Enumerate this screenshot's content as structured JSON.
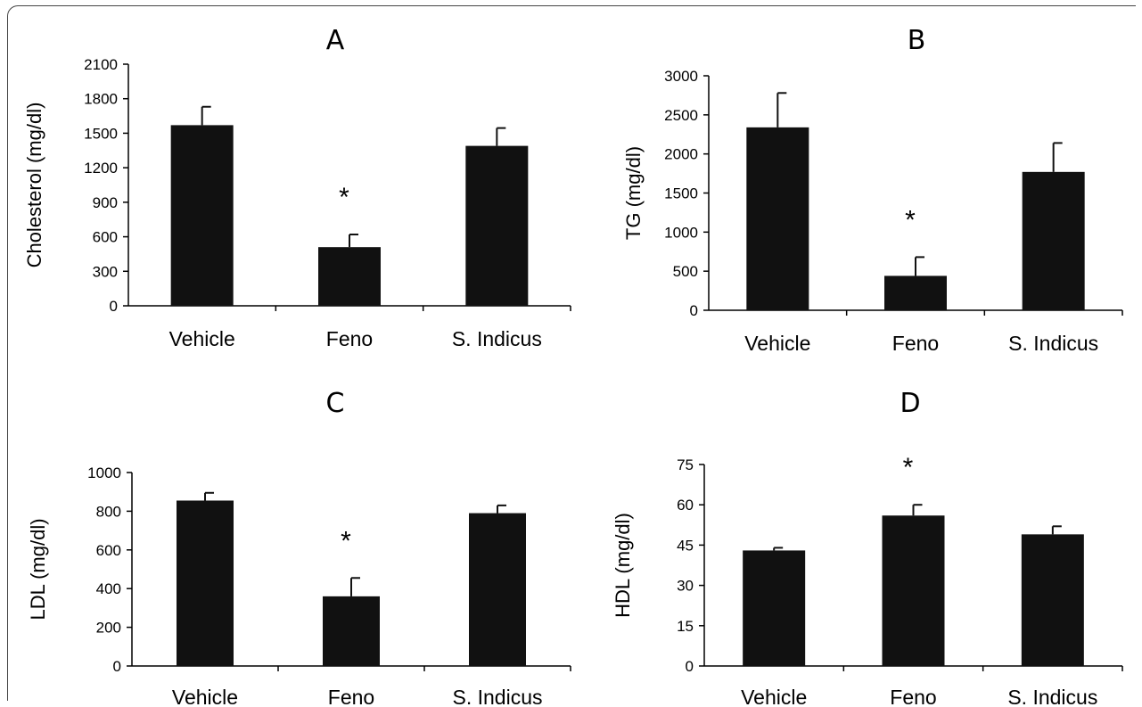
{
  "chart_data": [
    {
      "type": "bar",
      "title": "A",
      "ylabel": "Cholesterol (mg/dl)",
      "categories": [
        "Vehicle",
        "Feno",
        "S. Indicus"
      ],
      "values": [
        1570,
        510,
        1390
      ],
      "errors": [
        160,
        110,
        155
      ],
      "significance": [
        "",
        "*",
        ""
      ],
      "ylim": [
        0,
        2100
      ],
      "yticks": [
        "0",
        "300",
        "600",
        "900",
        "1200",
        "1500",
        "1800",
        "2100"
      ]
    },
    {
      "type": "bar",
      "title": "B",
      "ylabel": "TG (mg/dl)",
      "categories": [
        "Vehicle",
        "Feno",
        "S. Indicus"
      ],
      "values": [
        2340,
        440,
        1770
      ],
      "errors": [
        440,
        240,
        370
      ],
      "significance": [
        "",
        "*",
        ""
      ],
      "ylim": [
        0,
        3000
      ],
      "yticks": [
        "0",
        "500",
        "1000",
        "1500",
        "2000",
        "2500",
        "3000"
      ]
    },
    {
      "type": "bar",
      "title": "C",
      "ylabel": "LDL (mg/dl)",
      "categories": [
        "Vehicle",
        "Feno",
        "S. Indicus"
      ],
      "values": [
        855,
        360,
        790
      ],
      "errors": [
        40,
        95,
        40
      ],
      "significance": [
        "",
        "*",
        ""
      ],
      "ylim": [
        0,
        1000
      ],
      "yticks": [
        "0",
        "200",
        "400",
        "600",
        "800",
        "1000"
      ]
    },
    {
      "type": "bar",
      "title": "D",
      "ylabel": "HDL (mg/dl)",
      "categories": [
        "Vehicle",
        "Feno",
        "S. Indicus"
      ],
      "values": [
        43,
        56,
        49
      ],
      "errors": [
        1,
        4,
        3
      ],
      "significance": [
        "",
        "*",
        ""
      ],
      "ylim": [
        0,
        75
      ],
      "yticks": [
        "0",
        "15",
        "30",
        "45",
        "60",
        "75"
      ]
    }
  ]
}
